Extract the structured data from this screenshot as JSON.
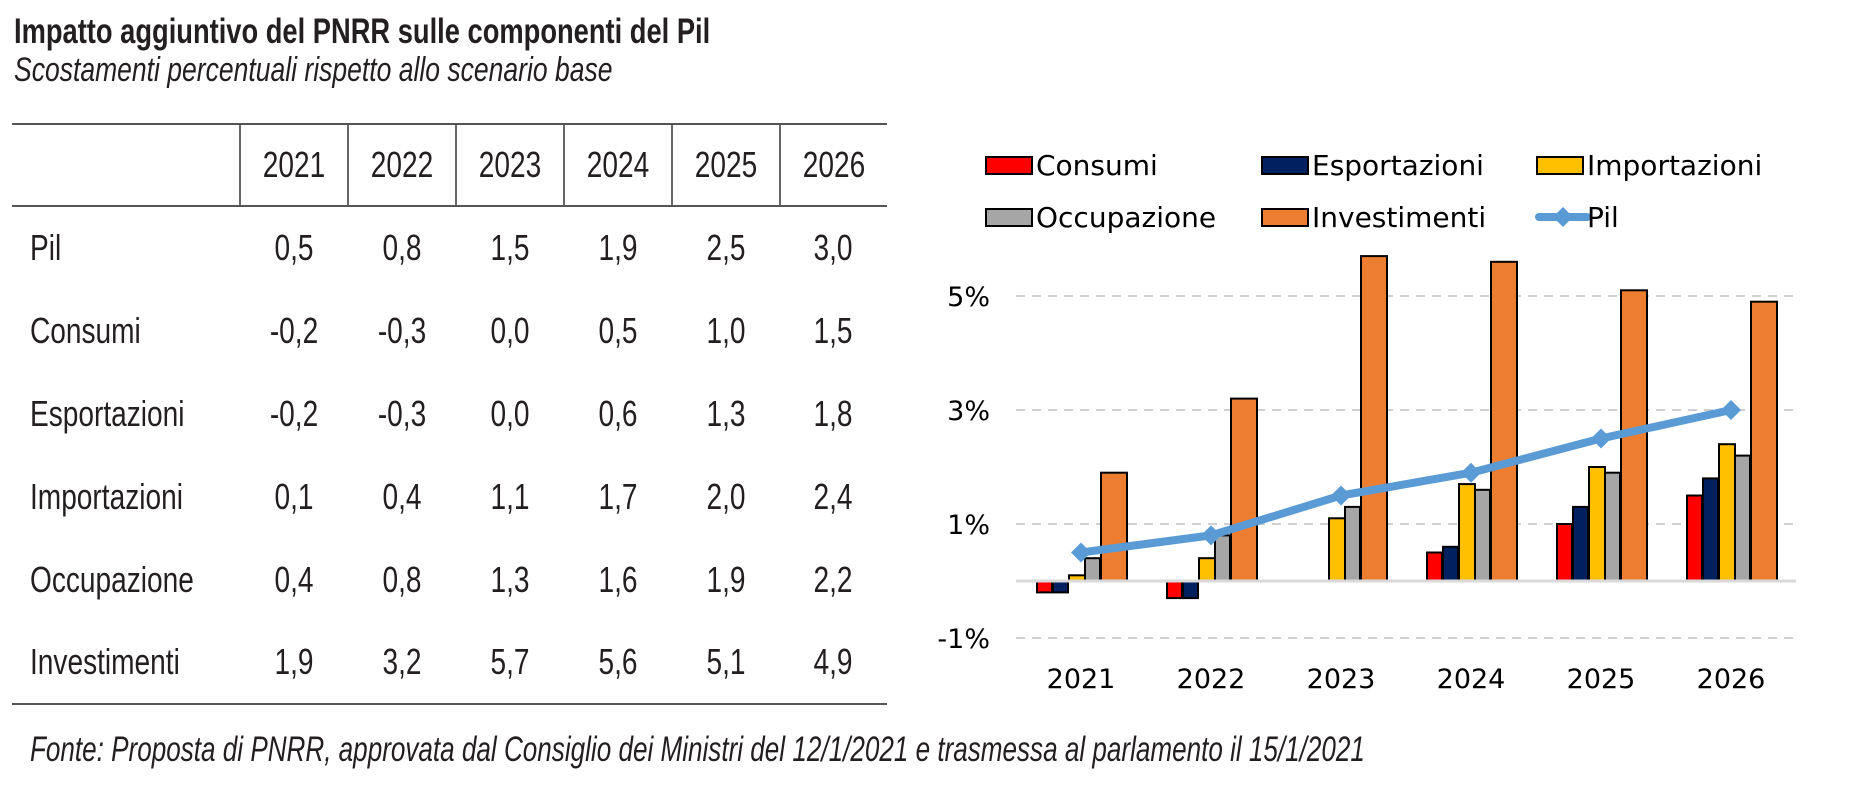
{
  "header": {
    "title": "Impatto aggiuntivo del PNRR sulle componenti del Pil",
    "subtitle": "Scostamenti percentuali rispetto allo scenario base"
  },
  "table": {
    "columns": [
      "",
      "2021",
      "2022",
      "2023",
      "2024",
      "2025",
      "2026"
    ],
    "rows": [
      {
        "label": "Pil",
        "values": [
          "0,5",
          "0,8",
          "1,5",
          "1,9",
          "2,5",
          "3,0"
        ]
      },
      {
        "label": "Consumi",
        "values": [
          "-0,2",
          "-0,3",
          "0,0",
          "0,5",
          "1,0",
          "1,5"
        ]
      },
      {
        "label": "Esportazioni",
        "values": [
          "-0,2",
          "-0,3",
          "0,0",
          "0,6",
          "1,3",
          "1,8"
        ]
      },
      {
        "label": "Importazioni",
        "values": [
          "0,1",
          "0,4",
          "1,1",
          "1,7",
          "2,0",
          "2,4"
        ]
      },
      {
        "label": "Occupazione",
        "values": [
          "0,4",
          "0,8",
          "1,3",
          "1,6",
          "1,9",
          "2,2"
        ]
      },
      {
        "label": "Investimenti",
        "values": [
          "1,9",
          "3,2",
          "5,7",
          "5,6",
          "5,1",
          "4,9"
        ]
      }
    ]
  },
  "footnote": "Fonte: Proposta di PNRR, approvata dal Consiglio dei Ministri del 12/1/2021 e trasmessa al parlamento il 15/1/2021",
  "chart_data": {
    "type": "bar",
    "title": "",
    "xlabel": "",
    "ylabel": "",
    "categories": [
      "2021",
      "2022",
      "2023",
      "2024",
      "2025",
      "2026"
    ],
    "ylim": [
      -1,
      5.5
    ],
    "yticks": [
      -1,
      1,
      3,
      5
    ],
    "ytick_labels": [
      "-1%",
      "1%",
      "3%",
      "5%"
    ],
    "grid": true,
    "legend_position": "top",
    "series": [
      {
        "name": "Consumi",
        "kind": "bar",
        "color": "#ff0000",
        "values": [
          -0.2,
          -0.3,
          0.0,
          0.5,
          1.0,
          1.5
        ]
      },
      {
        "name": "Esportazioni",
        "kind": "bar",
        "color": "#002060",
        "values": [
          -0.2,
          -0.3,
          0.0,
          0.6,
          1.3,
          1.8
        ]
      },
      {
        "name": "Importazioni",
        "kind": "bar",
        "color": "#ffc000",
        "values": [
          0.1,
          0.4,
          1.1,
          1.7,
          2.0,
          2.4
        ]
      },
      {
        "name": "Occupazione",
        "kind": "bar",
        "color": "#a6a6a6",
        "values": [
          0.4,
          0.8,
          1.3,
          1.6,
          1.9,
          2.2
        ]
      },
      {
        "name": "Investimenti",
        "kind": "bar",
        "color": "#ed7d31",
        "values": [
          1.9,
          3.2,
          5.7,
          5.6,
          5.1,
          4.9
        ]
      },
      {
        "name": "Pil",
        "kind": "line",
        "color": "#5b9bd5",
        "values": [
          0.5,
          0.8,
          1.5,
          1.9,
          2.5,
          3.0
        ]
      }
    ]
  }
}
